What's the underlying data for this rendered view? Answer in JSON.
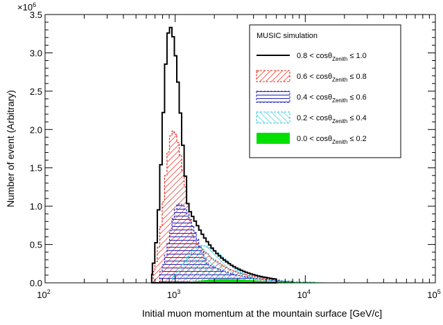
{
  "chart_data": {
    "type": "histogram",
    "xscale": "log",
    "xlim": [
      100,
      100000
    ],
    "ylim": [
      0,
      3500000
    ],
    "xlabel": "Initial muon momentum at the mountain surface [GeV/c]",
    "ylabel": "Number of event (Arbitrary)",
    "y_multiplier_label": "×10",
    "y_multiplier_exponent": "6",
    "y_ticks": [
      {
        "value": 0,
        "label": "0.0"
      },
      {
        "value": 500000,
        "label": "0.5"
      },
      {
        "value": 1000000,
        "label": "1.0"
      },
      {
        "value": 1500000,
        "label": "1.5"
      },
      {
        "value": 2000000,
        "label": "2.0"
      },
      {
        "value": 2500000,
        "label": "2.5"
      },
      {
        "value": 3000000,
        "label": "3.0"
      },
      {
        "value": 3500000,
        "label": "3.5"
      }
    ],
    "x_ticks": [
      {
        "value": 100,
        "base": "10",
        "exp": "2"
      },
      {
        "value": 1000,
        "base": "10",
        "exp": "3"
      },
      {
        "value": 10000,
        "base": "10",
        "exp": "4"
      },
      {
        "value": 100000,
        "base": "10",
        "exp": "5"
      }
    ],
    "legend": {
      "title": "MUSIC simulation",
      "position": "top-right"
    },
    "series": [
      {
        "name": "0.8 < cosθZenith ≤ 1.0",
        "label_pre": "0.8 < cos",
        "label_theta": "θ",
        "label_sub": "Zenith",
        "label_post": " ≤ 1.0",
        "style": "outline",
        "color": "#000000",
        "peak_momentum": 910,
        "peak_value": 3340000,
        "sigma_left": 0.055,
        "sigma_right": 0.09,
        "tail_exp": 0.9,
        "start_momentum": 660,
        "end_momentum": 6000
      },
      {
        "name": "0.6 < cosθZenith ≤ 0.8",
        "label_pre": "0.6 < cos",
        "label_theta": "θ",
        "label_sub": "Zenith",
        "label_post": " ≤ 0.8",
        "style": "hatch-diag",
        "color": "#e8291c",
        "peak_momentum": 960,
        "peak_value": 1980000,
        "sigma_left": 0.065,
        "sigma_right": 0.1,
        "tail_exp": 0.85,
        "start_momentum": 680,
        "end_momentum": 6500
      },
      {
        "name": "0.4 < cosθZenith ≤ 0.6",
        "label_pre": "0.4 < cos",
        "label_theta": "θ",
        "label_sub": "Zenith",
        "label_post": " ≤ 0.6",
        "style": "hatch-horiz",
        "color": "#2a2abf",
        "peak_momentum": 1070,
        "peak_value": 1030000,
        "sigma_left": 0.07,
        "sigma_right": 0.13,
        "tail_exp": 0.8,
        "start_momentum": 760,
        "end_momentum": 8000
      },
      {
        "name": "0.2 < cosθZenith ≤ 0.4",
        "label_pre": "0.2 < cos",
        "label_theta": "θ",
        "label_sub": "Zenith",
        "label_post": " ≤ 0.4",
        "style": "hatch-back",
        "color": "#27c4e0",
        "peak_momentum": 1550,
        "peak_value": 490000,
        "sigma_left": 0.11,
        "sigma_right": 0.2,
        "tail_exp": 0.8,
        "start_momentum": 950,
        "end_momentum": 12000
      },
      {
        "name": "0.0 < cosθZenith ≤ 0.2",
        "label_pre": "0.0 < cos",
        "label_theta": "θ",
        "label_sub": "Zenith",
        "label_post": " ≤ 0.2",
        "style": "solid",
        "color": "#00e000",
        "peak_momentum": 2300,
        "peak_value": 45000,
        "sigma_left": 0.15,
        "sigma_right": 0.25,
        "tail_exp": 0.8,
        "start_momentum": 1300,
        "end_momentum": 14000
      }
    ]
  }
}
